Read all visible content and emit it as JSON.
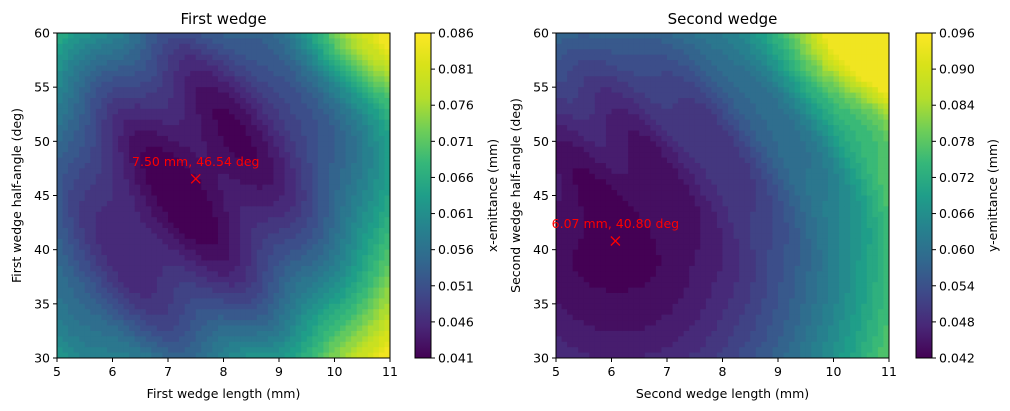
{
  "chart_data": [
    {
      "type": "heatmap",
      "title": "First wedge",
      "xlabel": "First wedge length (mm)",
      "ylabel": "First wedge half-angle (deg)",
      "xlim": [
        5,
        11
      ],
      "ylim": [
        30,
        60
      ],
      "xticks": [
        "5",
        "6",
        "7",
        "8",
        "9",
        "10",
        "11"
      ],
      "yticks": [
        "30",
        "35",
        "40",
        "45",
        "50",
        "55",
        "60"
      ],
      "colorbar": {
        "label": "x-emittance (mm)",
        "ticks": [
          "0.041",
          "0.046",
          "0.051",
          "0.056",
          "0.061",
          "0.066",
          "0.071",
          "0.076",
          "0.081",
          "0.086"
        ],
        "range": [
          0.041,
          0.086
        ],
        "colormap": "viridis"
      },
      "minimum": {
        "x": 7.5,
        "y": 46.54,
        "label": "7.50 mm, 46.54 deg",
        "marker_color": "#ff0000"
      },
      "field": {
        "center_value": 0.042,
        "max_value": 0.086,
        "grid": false
      }
    },
    {
      "type": "heatmap",
      "title": "Second wedge",
      "xlabel": "Second wedge length (mm)",
      "ylabel": "Second wedge half-angle (deg)",
      "xlim": [
        5,
        11
      ],
      "ylim": [
        30,
        60
      ],
      "xticks": [
        "5",
        "6",
        "7",
        "8",
        "9",
        "10",
        "11"
      ],
      "yticks": [
        "30",
        "35",
        "40",
        "45",
        "50",
        "55",
        "60"
      ],
      "colorbar": {
        "label": "y-emittance (mm)",
        "ticks": [
          "0.042",
          "0.048",
          "0.054",
          "0.060",
          "0.066",
          "0.072",
          "0.078",
          "0.084",
          "0.090",
          "0.096"
        ],
        "range": [
          0.042,
          0.096
        ],
        "colormap": "viridis"
      },
      "minimum": {
        "x": 6.07,
        "y": 40.8,
        "label": "6.07 mm, 40.80 deg",
        "marker_color": "#ff0000"
      },
      "field": {
        "center_value": 0.043,
        "max_value": 0.096,
        "grid": false
      }
    }
  ]
}
